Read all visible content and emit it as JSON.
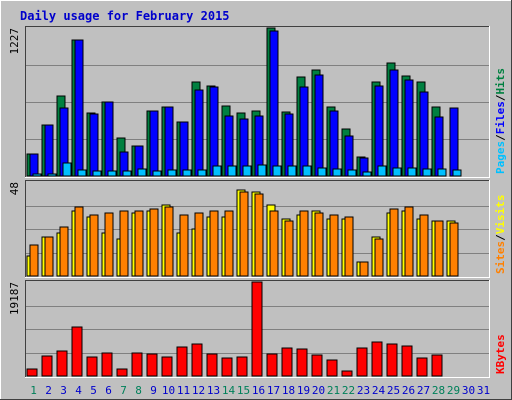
{
  "chart_data": {
    "type": "bar",
    "title": "Daily usage for February 2015",
    "categories": [
      "1",
      "2",
      "3",
      "4",
      "5",
      "6",
      "7",
      "8",
      "9",
      "10",
      "11",
      "12",
      "13",
      "14",
      "15",
      "16",
      "17",
      "18",
      "19",
      "20",
      "21",
      "22",
      "23",
      "24",
      "25",
      "26",
      "27",
      "28",
      "29",
      "30",
      "31"
    ],
    "weekend_days": [
      "1",
      "7",
      "8",
      "14",
      "15",
      "21",
      "22",
      "28",
      "29"
    ],
    "panels": [
      {
        "id": "hits_files_pages",
        "ymax_label": "1227",
        "ylim": [
          0,
          1227
        ],
        "legend": [
          "Pages",
          "/",
          "Files",
          "/",
          "Hits"
        ],
        "series": [
          {
            "name": "Hits",
            "color": "#008040",
            "values": [
              180,
              420,
              660,
              1130,
              520,
              610,
              315,
              250,
              540,
              570,
              450,
              780,
              750,
              580,
              520,
              540,
              1227,
              530,
              820,
              880,
              570,
              390,
              160,
              780,
              940,
              830,
              780,
              570,
              0,
              0,
              0
            ]
          },
          {
            "name": "Files",
            "color": "#0000ff",
            "values": [
              180,
              420,
              560,
              1130,
              510,
              610,
              200,
              250,
              540,
              570,
              450,
              710,
              740,
              500,
              470,
              500,
              1200,
              510,
              740,
              840,
              540,
              330,
              150,
              750,
              880,
              800,
              700,
              490,
              560,
              0,
              0
            ]
          },
          {
            "name": "Pages",
            "color": "#00c0ff",
            "values": [
              20,
              20,
              110,
              50,
              40,
              40,
              45,
              60,
              40,
              50,
              50,
              50,
              80,
              80,
              80,
              90,
              85,
              80,
              80,
              70,
              60,
              50,
              30,
              80,
              70,
              70,
              60,
              60,
              50,
              0,
              0
            ]
          }
        ]
      },
      {
        "id": "visits_sites",
        "ymax_label": "48",
        "ylim": [
          0,
          48
        ],
        "legend": [
          "Sites",
          "/",
          "Visits"
        ],
        "series": [
          {
            "name": "Visits",
            "color": "#ffff00",
            "values": [
              10,
              20,
              22,
              33,
              30,
              22,
              19,
              32,
              33,
              36,
              22,
              24,
              30,
              30,
              44,
              43,
              36,
              29,
              31,
              33,
              29,
              29,
              7,
              20,
              32,
              33,
              29,
              28,
              28,
              0,
              0
            ]
          },
          {
            "name": "Sites",
            "color": "#ff8000",
            "values": [
              16,
              20,
              25,
              35,
              31,
              32,
              33,
              33,
              34,
              35,
              31,
              32,
              33,
              33,
              43,
              42,
              33,
              28,
              33,
              32,
              31,
              30,
              7,
              19,
              34,
              35,
              31,
              28,
              27,
              0,
              0
            ]
          }
        ]
      },
      {
        "id": "kbytes",
        "ymax_label": "19187",
        "ylim": [
          0,
          19187
        ],
        "legend": [
          "KBytes"
        ],
        "series": [
          {
            "name": "KBytes",
            "color": "#ff0000",
            "values": [
              1500,
              4000,
              5200,
              9900,
              3800,
              4600,
              1500,
              4600,
              4500,
              3800,
              6000,
              6500,
              4500,
              3600,
              3800,
              19187,
              4500,
              5700,
              5500,
              4300,
              3200,
              1100,
              5700,
              6900,
              6500,
              6100,
              3700,
              4300,
              0,
              0,
              0
            ]
          }
        ]
      }
    ],
    "colors": {
      "background": "#c0c0c0",
      "plot_background": "#c0c0c0",
      "gridline": "#808080",
      "title": "#0000cc",
      "weekday_label": "#0000cc",
      "weekend_label": "#00805a"
    }
  }
}
